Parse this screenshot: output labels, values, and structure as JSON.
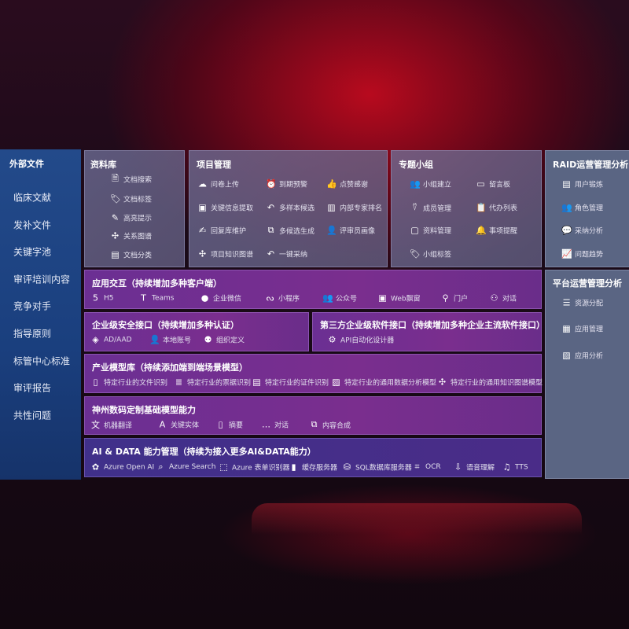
{
  "sidebar": {
    "title": "外部文件",
    "items": [
      "临床文献",
      "发补文件",
      "关键字池",
      "审评培训内容",
      "竞争对手",
      "指导原则",
      "标管中心标准",
      "审评报告",
      "共性问题"
    ]
  },
  "colors": {
    "sidebar": "#1e4583",
    "gray_panel": "#6c6c93",
    "purple_panel": "#72308f",
    "ai_panel": "#43308a",
    "accent_red": "#c8101e"
  },
  "sections": {
    "library": {
      "title": "资料库",
      "items": [
        {
          "label": "文档搜索",
          "icon": "doc-search-icon"
        },
        {
          "label": "文档标签",
          "icon": "tag-icon"
        },
        {
          "label": "高亮提示",
          "icon": "pen-icon"
        },
        {
          "label": "关系图谱",
          "icon": "graph-icon"
        },
        {
          "label": "文档分类",
          "icon": "doc-category-icon"
        }
      ]
    },
    "project": {
      "title": "项目管理",
      "items": [
        {
          "label": "问卷上传",
          "icon": "cloud-upload-icon"
        },
        {
          "label": "到期预警",
          "icon": "alarm-icon"
        },
        {
          "label": "点赞感谢",
          "icon": "thumbs-up-icon"
        },
        {
          "label": "关键信息提取",
          "icon": "window-icon"
        },
        {
          "label": "多样本候选",
          "icon": "reply-icon"
        },
        {
          "label": "内部专家排名",
          "icon": "ranking-icon"
        },
        {
          "label": "回复库维护",
          "icon": "edit-icon"
        },
        {
          "label": "多候选生成",
          "icon": "puzzle-icon"
        },
        {
          "label": "评审员画像",
          "icon": "user-icon"
        },
        {
          "label": "项目知识图谱",
          "icon": "graph-icon"
        },
        {
          "label": "一键采纳",
          "icon": "reply-icon"
        }
      ]
    },
    "group": {
      "title": "专题小组",
      "items": [
        {
          "label": "小组建立",
          "icon": "users-icon"
        },
        {
          "label": "留言板",
          "icon": "bbs-icon"
        },
        {
          "label": "成员管理",
          "icon": "user-add-icon"
        },
        {
          "label": "代办列表",
          "icon": "clipboard-icon"
        },
        {
          "label": "资料管理",
          "icon": "folder-icon"
        },
        {
          "label": "事项提醒",
          "icon": "bell-icon"
        },
        {
          "label": "小组标签",
          "icon": "tag-icon"
        }
      ]
    },
    "raid": {
      "title": "RAID运营管理分析",
      "items": [
        {
          "label": "用户锻炼",
          "icon": "id-card-icon"
        },
        {
          "label": "角色管理",
          "icon": "users-icon"
        },
        {
          "label": "采纳分析",
          "icon": "qa-icon"
        },
        {
          "label": "问题趋势",
          "icon": "trend-icon"
        }
      ]
    },
    "platform": {
      "title": "平台运营管理分析",
      "items": [
        {
          "label": "资源分配",
          "icon": "checklist-icon"
        },
        {
          "label": "应用管理",
          "icon": "apps-icon"
        },
        {
          "label": "应用分析",
          "icon": "analysis-icon"
        }
      ]
    },
    "app": {
      "title": "应用交互（持续增加多种客户端）",
      "items": [
        {
          "label": "H5",
          "icon": "html5-icon"
        },
        {
          "label": "Teams",
          "icon": "teams-icon"
        },
        {
          "label": "企业微信",
          "icon": "wechat-icon"
        },
        {
          "label": "小程序",
          "icon": "miniprogram-icon"
        },
        {
          "label": "公众号",
          "icon": "users-icon"
        },
        {
          "label": "Web飘窗",
          "icon": "window-icon"
        },
        {
          "label": "门户",
          "icon": "portal-icon"
        },
        {
          "label": "对话",
          "icon": "chat-users-icon"
        }
      ]
    },
    "security": {
      "title": "企业级安全接口（持续增加多种认证）",
      "items": [
        {
          "label": "AD/AAD",
          "icon": "ad-icon"
        },
        {
          "label": "本地账号",
          "icon": "user-icon"
        },
        {
          "label": "组织定义",
          "icon": "org-icon"
        }
      ]
    },
    "thirdparty": {
      "title": "第三方企业级软件接口（持续增加多种企业主流软件接口）",
      "items": [
        {
          "label": "API自动化设计器",
          "icon": "gear-icon"
        }
      ]
    },
    "industry": {
      "title": "产业模型库（持续添加端到端场景模型）",
      "items": [
        {
          "label": "特定行业的文件识别",
          "icon": "doc-icon"
        },
        {
          "label": "特定行业的票据识别",
          "icon": "receipt-icon"
        },
        {
          "label": "特定行业的证件识别",
          "icon": "id-card-icon"
        },
        {
          "label": "特定行业的通用数据分析模型",
          "icon": "image-icon"
        },
        {
          "label": "特定行业的通用知识图谱模型",
          "icon": "graph-icon"
        }
      ]
    },
    "base": {
      "title": "神州数码定制基础模型能力",
      "items": [
        {
          "label": "机器翻译",
          "icon": "translate-icon"
        },
        {
          "label": "关键实体",
          "icon": "shield-icon"
        },
        {
          "label": "摘要",
          "icon": "doc-icon"
        },
        {
          "label": "对话",
          "icon": "chat-icon"
        },
        {
          "label": "内容合成",
          "icon": "puzzle-icon"
        }
      ]
    },
    "ai": {
      "title": "AI & DATA 能力管理（持续为接入更多AI&DATA能力）",
      "items": [
        {
          "label": "Azure Open AI",
          "icon": "openai-icon"
        },
        {
          "label": "Azure Search",
          "icon": "search-icon"
        },
        {
          "label": "Azure 表单识别器",
          "icon": "form-icon"
        },
        {
          "label": "缓存服务器",
          "icon": "cache-icon"
        },
        {
          "label": "SQL数据库服务器",
          "icon": "database-icon"
        },
        {
          "label": "OCR",
          "icon": "ocr-icon"
        },
        {
          "label": "语音理解",
          "icon": "voice-icon"
        },
        {
          "label": "TTS",
          "icon": "tts-icon"
        }
      ]
    }
  }
}
